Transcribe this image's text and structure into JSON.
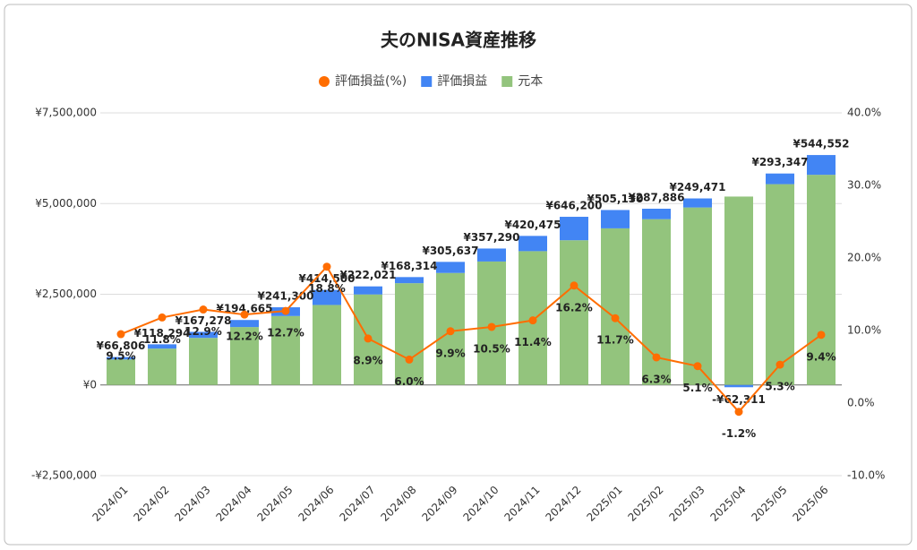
{
  "chart_data": {
    "type": "bar",
    "title": "夫のNISA資産推移",
    "stacked": true,
    "categories": [
      "2024/01",
      "2024/02",
      "2024/03",
      "2024/04",
      "2024/05",
      "2024/06",
      "2024/07",
      "2024/08",
      "2024/09",
      "2024/10",
      "2024/11",
      "2024/12",
      "2025/01",
      "2025/02",
      "2025/03",
      "2025/04",
      "2025/05",
      "2025/06"
    ],
    "series": [
      {
        "name": "評価損益(%)",
        "type": "line",
        "axis": "y2",
        "color": "#ff6d01",
        "values": [
          9.5,
          11.8,
          12.9,
          12.2,
          12.7,
          18.8,
          8.9,
          6.0,
          9.9,
          10.5,
          11.4,
          16.2,
          11.7,
          6.3,
          5.1,
          -1.2,
          5.3,
          9.4
        ],
        "value_labels": [
          "9.5%",
          "11.8%",
          "12.9%",
          "12.2%",
          "12.7%",
          "18.8%",
          "8.9%",
          "6.0%",
          "9.9%",
          "10.5%",
          "11.4%",
          "16.2%",
          "11.7%",
          "6.3%",
          "5.1%",
          "-1.2%",
          "5.3%",
          "9.4%"
        ]
      },
      {
        "name": "評価損益",
        "color": "#4285f4",
        "values": [
          66806,
          118294,
          167278,
          194665,
          241300,
          414500,
          222021,
          168314,
          305637,
          357290,
          420475,
          646200,
          505130,
          287886,
          249471,
          -62311,
          293347,
          544552
        ],
        "value_labels": [
          "¥66,806",
          "¥118,294",
          "¥167,278",
          "¥194,665",
          "¥241,300",
          "¥414,500",
          "¥222,021",
          "¥168,314",
          "¥305,637",
          "¥357,290",
          "¥420,475",
          "¥646,200",
          "¥505,130",
          "¥287,886",
          "¥249,471",
          "-¥62,311",
          "¥293,347",
          "¥544,552"
        ]
      },
      {
        "name": "元本",
        "color": "#93c47d",
        "values": [
          703000,
          1002000,
          1297000,
          1596000,
          1900000,
          2205000,
          2495000,
          2805000,
          3087000,
          3403000,
          3688000,
          3989000,
          4317000,
          4570000,
          4892000,
          5193000,
          5535000,
          5793000
        ]
      }
    ],
    "ylim": [
      -2500000,
      7500000
    ],
    "yticks": [
      {
        "value": -2500000,
        "label": "-¥2,500,000"
      },
      {
        "value": 0,
        "label": "¥0"
      },
      {
        "value": 2500000,
        "label": "¥2,500,000"
      },
      {
        "value": 5000000,
        "label": "¥5,000,000"
      },
      {
        "value": 7500000,
        "label": "¥7,500,000"
      }
    ],
    "y2lim": [
      -10,
      40
    ],
    "y2ticks": [
      {
        "value": -10,
        "label": "-10.0%"
      },
      {
        "value": 0,
        "label": "0.0%"
      },
      {
        "value": 10,
        "label": "10.0%"
      },
      {
        "value": 20,
        "label": "20.0%"
      },
      {
        "value": 30,
        "label": "30.0%"
      },
      {
        "value": 40,
        "label": "40.0%"
      }
    ],
    "grid": true,
    "legend": "top"
  }
}
